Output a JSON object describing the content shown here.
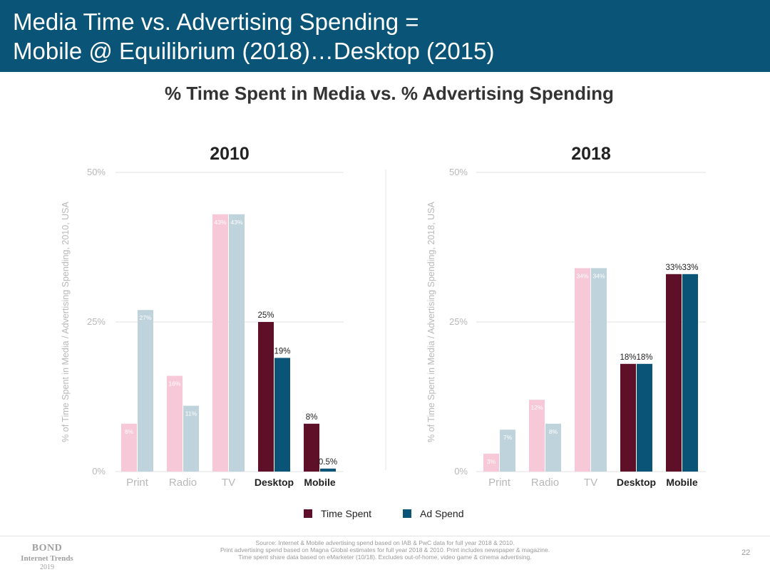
{
  "header": {
    "title_line1": "Media Time vs. Advertising Spending =",
    "title_line2": "Mobile @ Equilibrium (2018)…Desktop (2015)"
  },
  "main_title": "% Time Spent in Media vs. % Advertising Spending",
  "chart_data": [
    {
      "type": "bar",
      "title": "2010",
      "ylabel": "% of Time Spent in Media / Advertising Spending, 2010, USA",
      "xlabel": "",
      "ylim": [
        0,
        50
      ],
      "yticks": [
        "0%",
        "25%",
        "50%"
      ],
      "categories": [
        "Print",
        "Radio",
        "TV",
        "Desktop",
        "Mobile"
      ],
      "series": [
        {
          "name": "Time Spent",
          "values": [
            8,
            16,
            43,
            25,
            8
          ],
          "labels": [
            "8%",
            "16%",
            "43%",
            "25%",
            "8%"
          ]
        },
        {
          "name": "Ad Spend",
          "values": [
            27,
            11,
            43,
            19,
            0.5
          ],
          "labels": [
            "27%",
            "11%",
            "43%",
            "19%",
            "0.5%"
          ]
        }
      ]
    },
    {
      "type": "bar",
      "title": "2018",
      "ylabel": "% of Time Spent in Media / Advertising Spending, 2018, USA",
      "xlabel": "",
      "ylim": [
        0,
        50
      ],
      "yticks": [
        "0%",
        "25%",
        "50%"
      ],
      "categories": [
        "Print",
        "Radio",
        "TV",
        "Desktop",
        "Mobile"
      ],
      "series": [
        {
          "name": "Time Spent",
          "values": [
            3,
            12,
            34,
            18,
            33
          ],
          "labels": [
            "3%",
            "12%",
            "34%",
            "18%",
            "33%"
          ]
        },
        {
          "name": "Ad Spend",
          "values": [
            7,
            8,
            34,
            18,
            33
          ],
          "labels": [
            "7%",
            "8%",
            "34%",
            "18%",
            "33%"
          ]
        }
      ]
    }
  ],
  "colors": {
    "time_spent": "#5e1028",
    "ad_spend": "#0a5577",
    "time_spent_faded": "#f7c9d8",
    "ad_spend_faded": "#bfd3dc",
    "header_bg": "#0a5577"
  },
  "legend": {
    "time_spent": "Time Spent",
    "ad_spend": "Ad Spend"
  },
  "footer": {
    "logo_line1": "BOND",
    "logo_line2": "Internet Trends",
    "logo_line3": "2019",
    "source_line1": "Source: Internet & Mobile advertising spend based on IAB & PwC data for full year 2018 & 2010.",
    "source_line2": "Print advertising spend based on Magna Global estimates for full year 2018 & 2010. Print includes newspaper & magazine.",
    "source_line3": "Time spent share data based on eMarketer (10/18). Excludes out-of-home, video game & cinema advertising.",
    "page_number": "22"
  }
}
